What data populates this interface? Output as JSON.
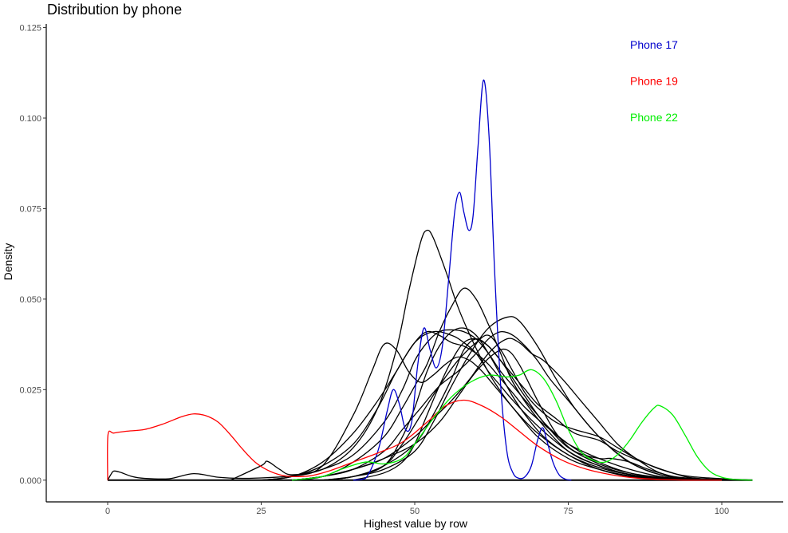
{
  "chart_data": {
    "type": "line",
    "title": "Distribution by phone",
    "xlabel": "Highest value by row",
    "ylabel": "Density",
    "xlim": [
      -10,
      110
    ],
    "ylim": [
      -0.006,
      0.126
    ],
    "xticks": [
      0,
      25,
      50,
      75,
      100
    ],
    "xtick_labels": [
      "0",
      "25",
      "50",
      "75",
      "100"
    ],
    "yticks": [
      0.0,
      0.025,
      0.05,
      0.075,
      0.1,
      0.125
    ],
    "ytick_labels": [
      "0.000",
      "0.025",
      "0.050",
      "0.075",
      "0.100",
      "0.125"
    ],
    "grid": false,
    "legend_position": "top-right",
    "colors": {
      "other_phones": "#000000",
      "phone17": "#0000cc",
      "phone19": "#ff0000",
      "phone22": "#00ee00"
    },
    "legend": [
      {
        "label": "Phone 17",
        "color": "#0000cc"
      },
      {
        "label": "Phone 19",
        "color": "#ff0000"
      },
      {
        "label": "Phone 22",
        "color": "#00ee00"
      }
    ],
    "series": [
      {
        "color": "#000000",
        "x": [
          0,
          0.5,
          1,
          2,
          4,
          6,
          10,
          14,
          18,
          22,
          26,
          30,
          35,
          40,
          45,
          48,
          50,
          52,
          54,
          56,
          58,
          60,
          62,
          64,
          66,
          68,
          70,
          72,
          75,
          80,
          85,
          90,
          95,
          100,
          105
        ],
        "y": [
          0.0,
          0.0015,
          0.0025,
          0.0022,
          0.001,
          0.0005,
          0.0004,
          0.0018,
          0.0008,
          0.0005,
          0.0007,
          0.0012,
          0.003,
          0.007,
          0.016,
          0.025,
          0.033,
          0.038,
          0.041,
          0.0415,
          0.041,
          0.039,
          0.035,
          0.03,
          0.026,
          0.022,
          0.018,
          0.014,
          0.009,
          0.0045,
          0.002,
          0.0008,
          0.0003,
          0.0,
          0.0
        ]
      },
      {
        "color": "#000000",
        "x": [
          20,
          25,
          26,
          28,
          30,
          35,
          40,
          44,
          47,
          49,
          51,
          52,
          53,
          55,
          57,
          59,
          61,
          63,
          66,
          70,
          75,
          80,
          85,
          90,
          95,
          105
        ],
        "y": [
          0.0,
          0.004,
          0.0052,
          0.003,
          0.0015,
          0.003,
          0.009,
          0.02,
          0.036,
          0.052,
          0.066,
          0.069,
          0.067,
          0.058,
          0.048,
          0.04,
          0.033,
          0.027,
          0.02,
          0.013,
          0.007,
          0.0035,
          0.0015,
          0.0005,
          0.0001,
          0.0
        ]
      },
      {
        "color": "#000000",
        "x": [
          25,
          30,
          35,
          40,
          43,
          45,
          47,
          49,
          51,
          53,
          55,
          57,
          59,
          61,
          63,
          66,
          70,
          75,
          80,
          85,
          90,
          95,
          105
        ],
        "y": [
          0.0,
          0.001,
          0.004,
          0.018,
          0.03,
          0.0375,
          0.036,
          0.03,
          0.027,
          0.029,
          0.032,
          0.034,
          0.033,
          0.03,
          0.026,
          0.02,
          0.012,
          0.006,
          0.003,
          0.0012,
          0.0004,
          0.0001,
          0.0
        ]
      },
      {
        "color": "#000000",
        "x": [
          25,
          30,
          35,
          40,
          44,
          47,
          50,
          53,
          56,
          58,
          60,
          62,
          64,
          66,
          70,
          75,
          80,
          85,
          90,
          95,
          105
        ],
        "y": [
          0.0,
          0.001,
          0.005,
          0.013,
          0.022,
          0.03,
          0.038,
          0.041,
          0.04,
          0.038,
          0.035,
          0.03,
          0.026,
          0.022,
          0.015,
          0.008,
          0.004,
          0.0016,
          0.0005,
          0.0001,
          0.0
        ]
      },
      {
        "color": "#000000",
        "x": [
          25,
          30,
          35,
          40,
          44,
          47,
          50,
          52,
          54,
          56,
          58,
          60,
          62,
          64,
          66,
          68,
          72,
          75,
          80,
          85,
          90,
          95,
          105
        ],
        "y": [
          0.0,
          0.001,
          0.004,
          0.01,
          0.02,
          0.03,
          0.038,
          0.041,
          0.04,
          0.038,
          0.037,
          0.035,
          0.032,
          0.028,
          0.024,
          0.02,
          0.014,
          0.01,
          0.006,
          0.003,
          0.001,
          0.0002,
          0.0
        ]
      },
      {
        "color": "#000000",
        "x": [
          30,
          35,
          40,
          45,
          48,
          50,
          52,
          54,
          56,
          58,
          60,
          62,
          64,
          66,
          70,
          75,
          80,
          85,
          90,
          95,
          105
        ],
        "y": [
          0.0,
          0.001,
          0.005,
          0.012,
          0.02,
          0.026,
          0.032,
          0.041,
          0.048,
          0.053,
          0.05,
          0.043,
          0.035,
          0.027,
          0.017,
          0.008,
          0.004,
          0.0015,
          0.0005,
          0.0001,
          0.0
        ]
      },
      {
        "color": "#000000",
        "x": [
          30,
          35,
          40,
          45,
          48,
          51,
          54,
          57,
          60,
          62,
          64,
          66,
          68,
          70,
          72,
          75,
          80,
          85,
          90,
          95,
          105
        ],
        "y": [
          0.0,
          0.001,
          0.003,
          0.008,
          0.014,
          0.02,
          0.026,
          0.03,
          0.035,
          0.039,
          0.041,
          0.04,
          0.037,
          0.033,
          0.028,
          0.022,
          0.012,
          0.005,
          0.0015,
          0.0003,
          0.0
        ]
      },
      {
        "color": "#000000",
        "x": [
          30,
          35,
          40,
          45,
          50,
          53,
          56,
          59,
          62,
          65,
          67,
          69,
          71,
          74,
          77,
          80,
          83,
          86,
          90,
          95,
          105
        ],
        "y": [
          0.0,
          0.001,
          0.003,
          0.006,
          0.012,
          0.017,
          0.022,
          0.028,
          0.035,
          0.039,
          0.038,
          0.035,
          0.033,
          0.028,
          0.022,
          0.016,
          0.01,
          0.006,
          0.002,
          0.0005,
          0.0
        ]
      },
      {
        "color": "#000000",
        "x": [
          35,
          40,
          45,
          48,
          51,
          54,
          57,
          60,
          62,
          64,
          66,
          68,
          70,
          73,
          76,
          80,
          83,
          86,
          90,
          95,
          105
        ],
        "y": [
          0.0,
          0.001,
          0.004,
          0.01,
          0.018,
          0.026,
          0.033,
          0.038,
          0.04,
          0.036,
          0.03,
          0.024,
          0.02,
          0.016,
          0.014,
          0.012,
          0.009,
          0.006,
          0.003,
          0.001,
          0.0
        ]
      },
      {
        "color": "#000000",
        "x": [
          30,
          35,
          40,
          45,
          50,
          54,
          57,
          60,
          63,
          65,
          67,
          70,
          73,
          76,
          80,
          82,
          85,
          88,
          92,
          96,
          105
        ],
        "y": [
          0.0,
          0.001,
          0.003,
          0.006,
          0.01,
          0.016,
          0.023,
          0.03,
          0.035,
          0.036,
          0.032,
          0.022,
          0.013,
          0.008,
          0.006,
          0.006,
          0.005,
          0.003,
          0.001,
          0.0002,
          0.0
        ]
      },
      {
        "color": "#000000",
        "x": [
          35,
          40,
          45,
          48,
          50,
          52,
          54,
          56,
          58,
          60,
          62,
          64,
          66,
          68,
          71,
          75,
          80,
          85,
          90,
          95,
          105
        ],
        "y": [
          0.0,
          0.001,
          0.004,
          0.012,
          0.02,
          0.03,
          0.037,
          0.041,
          0.042,
          0.04,
          0.035,
          0.029,
          0.023,
          0.018,
          0.012,
          0.007,
          0.003,
          0.001,
          0.0003,
          0.0,
          0.0
        ]
      },
      {
        "color": "#000000",
        "x": [
          35,
          40,
          45,
          50,
          53,
          56,
          59,
          62,
          65,
          67,
          70,
          73,
          76,
          80,
          84,
          88,
          92,
          96,
          105
        ],
        "y": [
          0.0,
          0.001,
          0.003,
          0.008,
          0.016,
          0.026,
          0.035,
          0.042,
          0.045,
          0.044,
          0.037,
          0.028,
          0.02,
          0.012,
          0.006,
          0.0025,
          0.0008,
          0.0002,
          0.0
        ]
      },
      {
        "color": "#000000",
        "x": [
          35,
          40,
          45,
          50,
          53,
          56,
          58,
          60,
          62,
          64,
          66,
          68,
          70,
          73,
          76,
          80,
          83,
          87,
          92,
          96,
          105
        ],
        "y": [
          0.0,
          0.001,
          0.004,
          0.01,
          0.018,
          0.028,
          0.036,
          0.039,
          0.037,
          0.033,
          0.029,
          0.025,
          0.021,
          0.017,
          0.013,
          0.011,
          0.008,
          0.005,
          0.002,
          0.0005,
          0.0
        ]
      },
      {
        "color": "#000000",
        "x": [
          40,
          45,
          48,
          50,
          52,
          54,
          56,
          58,
          60,
          62,
          64,
          66,
          68,
          71,
          75,
          80,
          85,
          90,
          95,
          105
        ],
        "y": [
          0.0,
          0.002,
          0.005,
          0.01,
          0.018,
          0.026,
          0.033,
          0.038,
          0.039,
          0.037,
          0.033,
          0.028,
          0.023,
          0.016,
          0.01,
          0.005,
          0.002,
          0.0006,
          0.0001,
          0.0
        ]
      },
      {
        "color": "#0000cc",
        "x": [
          40,
          42,
          44,
          45.5,
          46.5,
          47.5,
          48.5,
          49.5,
          50.5,
          51.5,
          52.5,
          53.5,
          54.5,
          55.5,
          56.5,
          57.3,
          58,
          58.8,
          59.5,
          60.3,
          61.2,
          62.1,
          63,
          64,
          65,
          66,
          67,
          68,
          69,
          70,
          70.8,
          71.5,
          72.5,
          73.5,
          74.5,
          75.5
        ],
        "y": [
          0.0,
          0.0005,
          0.008,
          0.019,
          0.025,
          0.021,
          0.014,
          0.016,
          0.032,
          0.042,
          0.036,
          0.031,
          0.037,
          0.055,
          0.074,
          0.0795,
          0.074,
          0.069,
          0.073,
          0.092,
          0.1105,
          0.095,
          0.058,
          0.026,
          0.008,
          0.002,
          0.0005,
          0.001,
          0.004,
          0.011,
          0.0145,
          0.011,
          0.005,
          0.0015,
          0.0003,
          0.0
        ]
      },
      {
        "color": "#ff0000",
        "x": [
          0,
          0.05,
          1,
          3,
          6,
          9,
          12,
          14,
          16,
          18,
          20,
          22,
          24,
          26,
          28,
          30,
          33,
          36,
          40,
          44,
          48,
          52,
          55,
          58,
          61,
          64,
          67,
          70,
          74,
          78,
          82,
          86,
          90,
          95,
          100
        ],
        "y": [
          0.0,
          0.0125,
          0.013,
          0.0135,
          0.014,
          0.0155,
          0.0175,
          0.0183,
          0.0178,
          0.016,
          0.0125,
          0.0085,
          0.005,
          0.0028,
          0.0015,
          0.001,
          0.0012,
          0.0025,
          0.005,
          0.0075,
          0.0105,
          0.016,
          0.0205,
          0.0221,
          0.0205,
          0.0175,
          0.0135,
          0.0095,
          0.0055,
          0.003,
          0.0015,
          0.0006,
          0.0002,
          0.0,
          0.0
        ]
      },
      {
        "color": "#00ee00",
        "x": [
          30,
          35,
          38,
          42,
          45,
          48,
          50,
          53,
          56,
          59,
          62,
          65,
          67,
          69,
          71,
          73,
          75,
          77,
          79,
          81,
          83,
          85,
          87,
          89,
          90,
          92,
          94,
          96,
          98,
          100,
          102,
          105
        ],
        "y": [
          0.0,
          0.001,
          0.003,
          0.005,
          0.0045,
          0.006,
          0.01,
          0.017,
          0.023,
          0.027,
          0.029,
          0.0285,
          0.029,
          0.0305,
          0.028,
          0.022,
          0.014,
          0.008,
          0.0055,
          0.005,
          0.007,
          0.011,
          0.016,
          0.02,
          0.0205,
          0.018,
          0.0125,
          0.0065,
          0.0025,
          0.0008,
          0.0002,
          0.0
        ]
      }
    ]
  }
}
